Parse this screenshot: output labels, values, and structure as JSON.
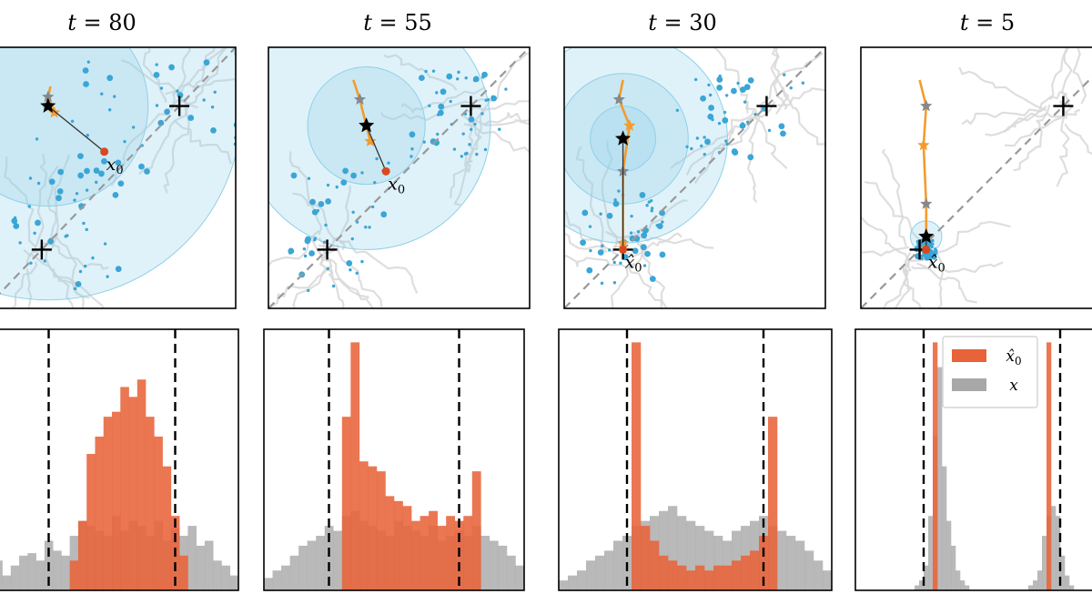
{
  "chart_data": {
    "type": "figure-grid",
    "columns": [
      {
        "title": "t = 80",
        "scatter": {
          "type": "scatter",
          "modes": [
            [
              -0.55,
              -0.55
            ],
            [
              0.55,
              0.55
            ]
          ],
          "diagonal": "dashed",
          "predicted_x0_label": "x0",
          "current_point": [
            -0.5,
            0.55
          ],
          "x0_point": [
            -0.05,
            0.2
          ],
          "confidence_radii": [
            0.8,
            1.55
          ],
          "trajectory": [
            [
              -0.48,
              0.7
            ],
            [
              -0.5,
              0.62
            ],
            [
              -0.45,
              0.5
            ]
          ]
        },
        "histogram": {
          "type": "bar",
          "xlim": [
            -3,
            3
          ],
          "dashed_lines": [
            -1.5,
            1.5
          ],
          "bins": 30,
          "series": [
            {
              "name": "x̂0",
              "values": [
                0,
                0,
                0,
                0,
                0,
                0,
                0,
                0,
                0,
                0,
                0.12,
                0.28,
                0.55,
                0.62,
                0.7,
                0.72,
                0.82,
                0.78,
                0.85,
                0.7,
                0.62,
                0.5,
                0.3,
                0.14,
                0,
                0,
                0,
                0,
                0,
                0
              ]
            },
            {
              "name": "x",
              "values": [
                0.08,
                0.12,
                0.06,
                0.1,
                0.14,
                0.15,
                0.12,
                0.2,
                0.16,
                0.14,
                0.22,
                0.28,
                0.26,
                0.24,
                0.22,
                0.3,
                0.24,
                0.28,
                0.26,
                0.22,
                0.28,
                0.2,
                0.25,
                0.22,
                0.26,
                0.18,
                0.2,
                0.12,
                0.1,
                0.06
              ]
            }
          ]
        }
      },
      {
        "title": "t = 55",
        "scatter": {
          "type": "scatter",
          "modes": [
            [
              -0.55,
              -0.55
            ],
            [
              0.55,
              0.55
            ]
          ],
          "diagonal": "dashed",
          "predicted_x0_label": "x0",
          "current_point": [
            -0.25,
            0.4
          ],
          "x0_point": [
            -0.1,
            0.05
          ],
          "confidence_radii": [
            0.45,
            0.95
          ],
          "trajectory": [
            [
              -0.35,
              0.75
            ],
            [
              -0.3,
              0.6
            ],
            [
              -0.22,
              0.28
            ]
          ]
        },
        "histogram": {
          "type": "bar",
          "xlim": [
            -3,
            3
          ],
          "dashed_lines": [
            -1.5,
            1.5
          ],
          "bins": 30,
          "series": [
            {
              "name": "x̂0",
              "values": [
                0,
                0,
                0,
                0,
                0,
                0,
                0,
                0,
                0,
                0.7,
                1.0,
                0.52,
                0.5,
                0.48,
                0.38,
                0.36,
                0.34,
                0.28,
                0.3,
                0.32,
                0.26,
                0.3,
                0.28,
                0.3,
                0.48,
                0,
                0,
                0,
                0,
                0
              ]
            },
            {
              "name": "x",
              "values": [
                0.05,
                0.08,
                0.1,
                0.14,
                0.18,
                0.2,
                0.22,
                0.26,
                0.24,
                0.3,
                0.32,
                0.28,
                0.26,
                0.24,
                0.22,
                0.28,
                0.26,
                0.24,
                0.22,
                0.26,
                0.2,
                0.22,
                0.24,
                0.22,
                0.26,
                0.22,
                0.2,
                0.18,
                0.14,
                0.1
              ]
            }
          ]
        }
      },
      {
        "title": "t = 30",
        "scatter": {
          "type": "scatter",
          "modes": [
            [
              -0.55,
              -0.55
            ],
            [
              0.55,
              0.55
            ]
          ],
          "diagonal": "dashed",
          "predicted_x0_label": "x̂0",
          "current_point": [
            -0.55,
            0.3
          ],
          "x0_point": [
            -0.55,
            -0.55
          ],
          "confidence_radii": [
            0.25,
            0.5,
            0.8
          ],
          "trajectory": [
            [
              -0.55,
              0.75
            ],
            [
              -0.58,
              0.6
            ],
            [
              -0.5,
              0.4
            ],
            [
              -0.55,
              0.05
            ],
            [
              -0.55,
              -0.5
            ]
          ]
        },
        "histogram": {
          "type": "bar",
          "xlim": [
            -3,
            3
          ],
          "dashed_lines": [
            -1.5,
            1.5
          ],
          "bins": 30,
          "series": [
            {
              "name": "x̂0",
              "values": [
                0,
                0,
                0,
                0,
                0,
                0,
                0,
                0,
                1.0,
                0.26,
                0.2,
                0.14,
                0.12,
                0.1,
                0.08,
                0.1,
                0.08,
                0.1,
                0.1,
                0.12,
                0.14,
                0.16,
                0.22,
                0.7,
                0,
                0,
                0,
                0,
                0,
                0
              ]
            },
            {
              "name": "x",
              "values": [
                0.04,
                0.06,
                0.08,
                0.12,
                0.14,
                0.16,
                0.2,
                0.22,
                0.26,
                0.28,
                0.3,
                0.32,
                0.34,
                0.3,
                0.28,
                0.26,
                0.24,
                0.22,
                0.2,
                0.24,
                0.26,
                0.28,
                0.3,
                0.26,
                0.24,
                0.22,
                0.2,
                0.16,
                0.12,
                0.08
              ]
            }
          ]
        }
      },
      {
        "title": "t = 5",
        "scatter": {
          "type": "scatter",
          "modes": [
            [
              -0.55,
              -0.55
            ],
            [
              0.55,
              0.55
            ]
          ],
          "diagonal": "dashed",
          "predicted_x0_label": "x̂0",
          "current_point": [
            -0.5,
            -0.45
          ],
          "x0_point": [
            -0.5,
            -0.55
          ],
          "confidence_radii": [
            0.12
          ],
          "trajectory": [
            [
              -0.55,
              0.75
            ],
            [
              -0.5,
              0.55
            ],
            [
              -0.52,
              0.25
            ],
            [
              -0.5,
              -0.2
            ],
            [
              -0.5,
              -0.45
            ]
          ]
        },
        "histogram": {
          "type": "bar",
          "xlim": [
            -3,
            3
          ],
          "dashed_lines": [
            -1.5,
            1.5
          ],
          "bins": 60,
          "legend": [
            {
              "label": "x̂0",
              "color": "#e8633a"
            },
            {
              "label": "x",
              "color": "#a8a8a8"
            }
          ],
          "legend_placement": "top-right",
          "series": [
            {
              "name": "x̂0",
              "values": [
                0,
                0,
                0,
                0,
                0,
                0,
                0,
                0,
                0,
                0,
                0,
                0,
                0,
                0,
                0,
                0,
                0,
                1.0,
                0,
                0,
                0,
                0,
                0,
                0,
                0,
                0,
                0,
                0,
                0,
                0,
                0,
                0,
                0,
                0,
                0,
                0,
                0,
                0,
                0,
                0,
                0,
                0,
                1.0,
                0,
                0,
                0,
                0,
                0,
                0,
                0,
                0,
                0,
                0,
                0,
                0,
                0,
                0,
                0,
                0,
                0
              ]
            },
            {
              "name": "x",
              "values": [
                0,
                0,
                0,
                0,
                0,
                0,
                0,
                0,
                0,
                0,
                0,
                0,
                0,
                0.02,
                0.04,
                0.1,
                0.3,
                0.62,
                0.9,
                0.5,
                0.28,
                0.18,
                0.08,
                0.04,
                0.02,
                0,
                0,
                0,
                0,
                0,
                0,
                0,
                0,
                0,
                0,
                0,
                0,
                0,
                0.02,
                0.04,
                0.08,
                0.22,
                0.3,
                0.34,
                0.3,
                0.14,
                0.06,
                0.02,
                0,
                0,
                0,
                0,
                0,
                0,
                0,
                0,
                0,
                0,
                0,
                0
              ]
            }
          ]
        }
      }
    ],
    "colors": {
      "x0_hat": "#e8633a",
      "x": "#a8a8a8",
      "scatter_points": "#3aa6d6",
      "confidence_fill": "#8fd0e8",
      "gray_paths": "#d8d8d8",
      "trajectory": "#f39c2c"
    }
  }
}
